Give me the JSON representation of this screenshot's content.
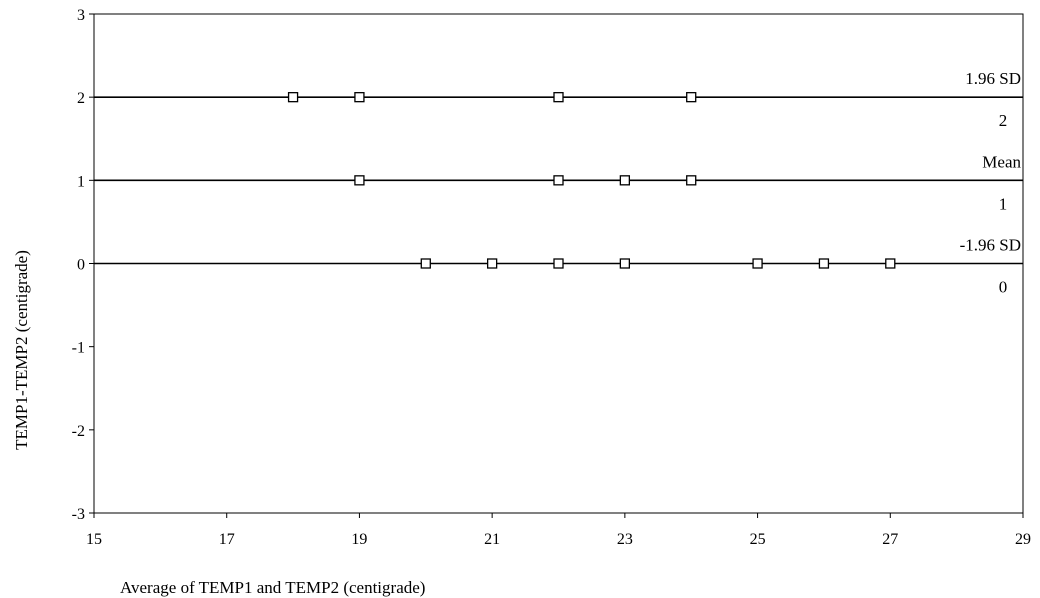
{
  "chart_data": {
    "type": "scatter",
    "title": "",
    "xlabel": "Average of TEMP1 and TEMP2 (centigrade)",
    "ylabel": "TEMP1-TEMP2 (centigrade)",
    "xlim": [
      15,
      29
    ],
    "ylim": [
      -3,
      3
    ],
    "xticks": [
      15,
      17,
      19,
      21,
      23,
      25,
      27,
      29
    ],
    "yticks": [
      -3,
      -2,
      -1,
      0,
      1,
      2,
      3
    ],
    "grid": false,
    "legend": "none",
    "marker": "open-square",
    "points": [
      {
        "x": 18,
        "y": 2
      },
      {
        "x": 19,
        "y": 2
      },
      {
        "x": 22,
        "y": 2
      },
      {
        "x": 24,
        "y": 2
      },
      {
        "x": 19,
        "y": 1
      },
      {
        "x": 22,
        "y": 1
      },
      {
        "x": 23,
        "y": 1
      },
      {
        "x": 24,
        "y": 1
      },
      {
        "x": 20,
        "y": 0
      },
      {
        "x": 21,
        "y": 0
      },
      {
        "x": 22,
        "y": 0
      },
      {
        "x": 23,
        "y": 0
      },
      {
        "x": 25,
        "y": 0
      },
      {
        "x": 26,
        "y": 0
      },
      {
        "x": 27,
        "y": 0
      }
    ],
    "reference_lines": [
      {
        "label": "1.96 SD",
        "value_label": "2",
        "y": 2
      },
      {
        "label": "Mean",
        "value_label": "1",
        "y": 1
      },
      {
        "label": "-1.96 SD",
        "value_label": "0",
        "y": 0
      }
    ]
  }
}
